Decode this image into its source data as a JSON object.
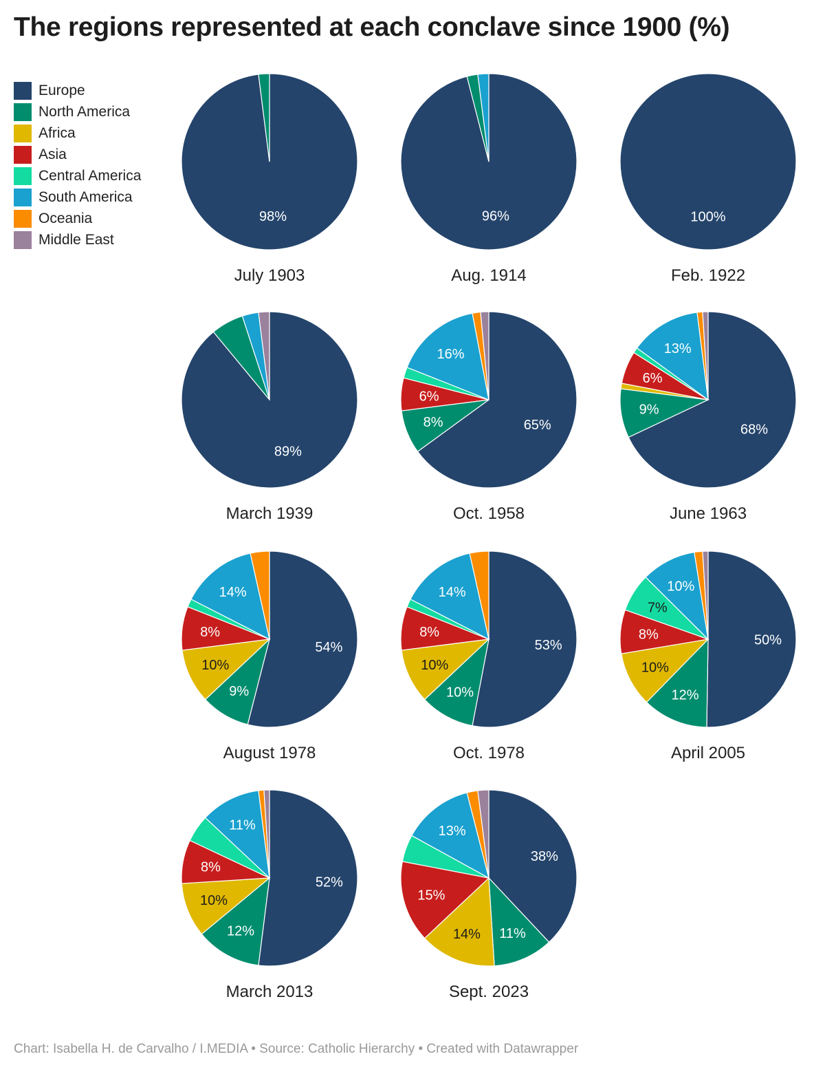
{
  "title": "The regions represented at each conclave since 1900 (%)",
  "footer": "Chart: Isabella H. de Carvalho / I.MEDIA • Source: Catholic Hierarchy • Created with Datawrapper",
  "chart_data": {
    "type": "pie",
    "title": "The regions represented at each conclave since 1900 (%)",
    "legend_placement": "top-left",
    "regions": [
      "Europe",
      "North America",
      "Africa",
      "Asia",
      "Central America",
      "South America",
      "Oceania",
      "Middle East"
    ],
    "colors": [
      "#24446b",
      "#008d6e",
      "#e0b800",
      "#c71e1d",
      "#14dba1",
      "#1aa1cf",
      "#fb8c00",
      "#9a819c"
    ],
    "label_text_colors": [
      "#ffffff",
      "#ffffff",
      "#1d1d1d",
      "#ffffff",
      "#1d1d1d",
      "#ffffff",
      "#ffffff",
      "#ffffff"
    ],
    "charts": [
      {
        "title": "July 1903",
        "values": [
          98,
          2,
          0,
          0,
          0,
          0,
          0,
          0
        ],
        "labels": [
          "98%",
          "",
          "",
          "",
          "",
          "",
          "",
          ""
        ]
      },
      {
        "title": "Aug. 1914",
        "values": [
          96,
          2,
          0,
          0,
          0,
          2,
          0,
          0
        ],
        "labels": [
          "96%",
          "",
          "",
          "",
          "",
          "",
          "",
          ""
        ]
      },
      {
        "title": "Feb. 1922",
        "values": [
          100,
          0,
          0,
          0,
          0,
          0,
          0,
          0
        ],
        "labels": [
          "100%",
          "",
          "",
          "",
          "",
          "",
          "",
          ""
        ]
      },
      {
        "title": "March 1939",
        "values": [
          89,
          6,
          0,
          0,
          0,
          3,
          0,
          2
        ],
        "labels": [
          "89%",
          "",
          "",
          "",
          "",
          "",
          "",
          ""
        ]
      },
      {
        "title": "Oct. 1958",
        "values": [
          65,
          8,
          0,
          6,
          2,
          16,
          1.5,
          1.5
        ],
        "labels": [
          "65%",
          "8%",
          "",
          "6%",
          "",
          "16%",
          "",
          ""
        ]
      },
      {
        "title": "June 1963",
        "values": [
          68,
          9,
          1,
          6,
          1,
          13,
          1,
          1
        ],
        "labels": [
          "68%",
          "9%",
          "",
          "6%",
          "",
          "13%",
          "",
          ""
        ]
      },
      {
        "title": "August 1978",
        "values": [
          54,
          9,
          10,
          8,
          1.5,
          14,
          3.5,
          0
        ],
        "labels": [
          "54%",
          "9%",
          "10%",
          "8%",
          "",
          "14%",
          "",
          ""
        ]
      },
      {
        "title": "Oct. 1978",
        "values": [
          53,
          10,
          10,
          8,
          1.5,
          14,
          3.5,
          0
        ],
        "labels": [
          "53%",
          "10%",
          "10%",
          "8%",
          "",
          "14%",
          "",
          ""
        ]
      },
      {
        "title": "April 2005",
        "values": [
          50,
          12,
          10,
          8,
          7,
          10,
          1.5,
          1
        ],
        "labels": [
          "50%",
          "12%",
          "10%",
          "8%",
          "7%",
          "10%",
          "",
          ""
        ]
      },
      {
        "title": "March 2013",
        "values": [
          52,
          12,
          10,
          8,
          5,
          11,
          1,
          1
        ],
        "labels": [
          "52%",
          "12%",
          "10%",
          "8%",
          "",
          "11%",
          "",
          ""
        ]
      },
      {
        "title": "Sept. 2023",
        "values": [
          38,
          11,
          14,
          15,
          5,
          13,
          2,
          2
        ],
        "labels": [
          "38%",
          "11%",
          "14%",
          "15%",
          "",
          "13%",
          "",
          ""
        ]
      }
    ]
  }
}
